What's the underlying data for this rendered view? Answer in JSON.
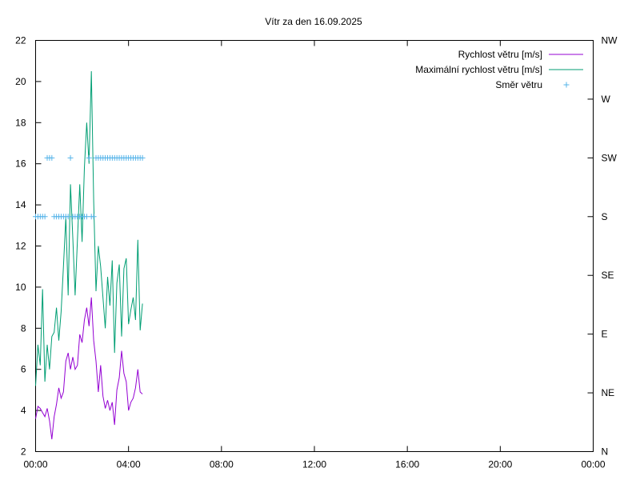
{
  "chart_data": {
    "type": "line",
    "title": "Vítr za den 16.09.2025",
    "x_tick_labels": [
      "00:00",
      "04:00",
      "08:00",
      "12:00",
      "16:00",
      "20:00",
      "00:00"
    ],
    "x_range_hours": [
      0,
      24
    ],
    "y_left_ticks": [
      "2",
      "4",
      "6",
      "8",
      "10",
      "12",
      "14",
      "16",
      "18",
      "20",
      "22"
    ],
    "y_left_range": [
      2,
      22
    ],
    "y_right_ticks": [
      "N",
      "NE",
      "E",
      "SE",
      "S",
      "SW",
      "W",
      "NW"
    ],
    "y_right_range_degrees": [
      0,
      315
    ],
    "grid": false,
    "legend_position": "top-right",
    "series": [
      {
        "name": "Rychlost větru [m/s]",
        "color": "#9400d3",
        "axis": "left",
        "style": "line",
        "x": [
          0,
          0.1,
          0.2,
          0.3,
          0.4,
          0.5,
          0.6,
          0.7,
          0.8,
          0.9,
          1.0,
          1.1,
          1.2,
          1.3,
          1.4,
          1.5,
          1.6,
          1.7,
          1.8,
          1.9,
          2.0,
          2.1,
          2.2,
          2.3,
          2.4,
          2.5,
          2.6,
          2.7,
          2.8,
          2.9,
          3.0,
          3.1,
          3.2,
          3.3,
          3.4,
          3.5,
          3.6,
          3.7,
          3.8,
          3.9,
          4.0,
          4.1,
          4.2,
          4.3,
          4.4,
          4.5,
          4.6
        ],
        "y": [
          3.6,
          4.2,
          4.1,
          3.9,
          3.7,
          4.1,
          3.5,
          2.6,
          3.7,
          4.3,
          5.1,
          4.6,
          4.9,
          6.4,
          6.8,
          6.0,
          6.6,
          6.0,
          6.2,
          7.7,
          7.3,
          8.4,
          9.0,
          8.1,
          9.5,
          7.4,
          6.4,
          4.9,
          6.2,
          4.7,
          4.1,
          4.5,
          4.0,
          4.4,
          3.3,
          5.0,
          5.6,
          6.9,
          5.8,
          5.4,
          4.0,
          4.4,
          4.6,
          5.1,
          6.0,
          4.9,
          4.8
        ]
      },
      {
        "name": "Maximální rychlost větru [m/s]",
        "color": "#009e73",
        "axis": "left",
        "style": "line",
        "x": [
          0,
          0.1,
          0.2,
          0.3,
          0.4,
          0.5,
          0.6,
          0.7,
          0.8,
          0.9,
          1.0,
          1.1,
          1.2,
          1.3,
          1.4,
          1.5,
          1.6,
          1.7,
          1.8,
          1.9,
          2.0,
          2.1,
          2.2,
          2.3,
          2.4,
          2.5,
          2.6,
          2.7,
          2.8,
          2.9,
          3.0,
          3.1,
          3.2,
          3.3,
          3.4,
          3.5,
          3.6,
          3.7,
          3.8,
          3.9,
          4.0,
          4.1,
          4.2,
          4.3,
          4.4,
          4.5,
          4.6
        ],
        "y": [
          5.2,
          7.2,
          6.2,
          9.9,
          5.4,
          7.2,
          6.0,
          7.6,
          7.8,
          9.0,
          7.4,
          8.8,
          11.0,
          13.4,
          9.6,
          15.0,
          12.4,
          9.6,
          12.3,
          15.0,
          12.2,
          15.8,
          18.0,
          16.0,
          20.5,
          14.2,
          9.8,
          12.0,
          11.0,
          9.5,
          8.0,
          10.5,
          9.1,
          11.3,
          6.8,
          10.2,
          11.1,
          7.6,
          10.9,
          11.4,
          8.2,
          8.9,
          9.5,
          8.4,
          12.3,
          7.9,
          9.2
        ]
      },
      {
        "name": "Směr větru",
        "color": "#56b4e9",
        "axis": "right",
        "style": "points",
        "x": [
          0.0,
          0.1,
          0.2,
          0.3,
          0.4,
          0.5,
          0.6,
          0.7,
          0.8,
          0.9,
          1.0,
          1.1,
          1.2,
          1.3,
          1.4,
          1.5,
          1.6,
          1.7,
          1.8,
          1.9,
          2.0,
          2.1,
          2.2,
          2.3,
          2.4,
          2.5,
          2.6,
          2.7,
          2.8,
          2.9,
          3.0,
          3.1,
          3.2,
          3.3,
          3.4,
          3.5,
          3.6,
          3.7,
          3.8,
          3.9,
          4.0,
          4.1,
          4.2,
          4.3,
          4.4,
          4.5,
          4.6
        ],
        "y": [
          180,
          180,
          180,
          180,
          180,
          225,
          225,
          225,
          180,
          180,
          180,
          180,
          180,
          180,
          180,
          225,
          180,
          180,
          180,
          180,
          180,
          180,
          180,
          225,
          180,
          180,
          225,
          225,
          225,
          225,
          225,
          225,
          225,
          225,
          225,
          225,
          225,
          225,
          225,
          225,
          225,
          225,
          225,
          225,
          225,
          225,
          225
        ]
      }
    ]
  }
}
